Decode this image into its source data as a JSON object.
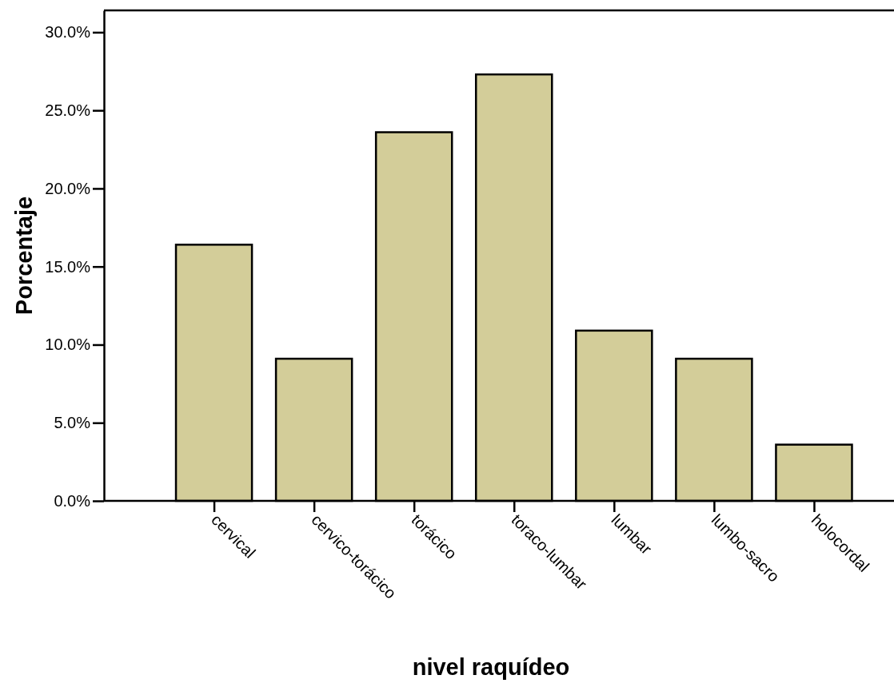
{
  "chart_data": {
    "type": "bar",
    "xlabel": "nivel raquídeo",
    "ylabel": "Porcentaje",
    "categories": [
      "cervical",
      "cervico-torácico",
      "torácico",
      "toraco-lumbar",
      "lumbar",
      "lumbo-sacro",
      "holocordal"
    ],
    "values": [
      16.4,
      9.1,
      23.6,
      27.3,
      10.9,
      9.1,
      3.6
    ],
    "color": "#d3cd99",
    "ylim": [
      0,
      31.4
    ],
    "yticks": [
      {
        "value": 0,
        "label": "0.0%"
      },
      {
        "value": 5,
        "label": "5.0%"
      },
      {
        "value": 10,
        "label": "10.0%"
      },
      {
        "value": 15,
        "label": "15.0%"
      },
      {
        "value": 20,
        "label": "20.0%"
      },
      {
        "value": 25,
        "label": "25.0%"
      },
      {
        "value": 30,
        "label": "30.0%"
      }
    ],
    "grid": false
  }
}
